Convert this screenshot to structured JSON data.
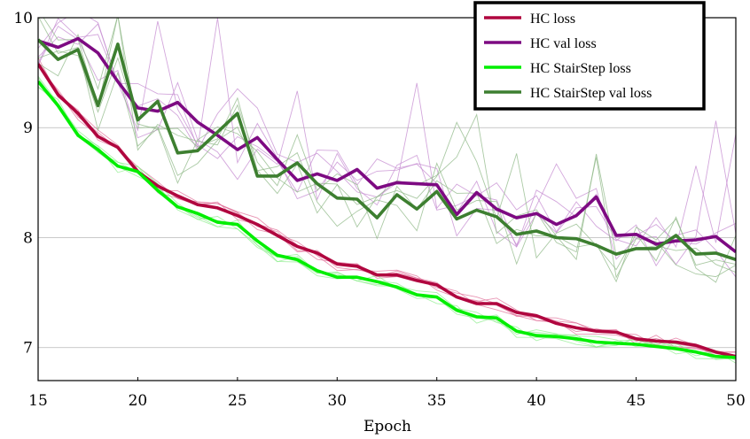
{
  "chart_data": {
    "type": "line",
    "title": "",
    "xlabel": "Epoch",
    "ylabel": "",
    "xlim": [
      15,
      50
    ],
    "ylim": [
      6.7,
      10
    ],
    "xticks": [
      15,
      20,
      25,
      30,
      35,
      40,
      45,
      50
    ],
    "yticks": [
      7,
      8,
      9,
      10
    ],
    "grid": "horizontal",
    "legend_position": "top-right",
    "x": [
      15,
      16,
      17,
      18,
      19,
      20,
      21,
      22,
      23,
      24,
      25,
      26,
      27,
      28,
      29,
      30,
      31,
      32,
      33,
      34,
      35,
      36,
      37,
      38,
      39,
      40,
      41,
      42,
      43,
      44,
      45,
      46,
      47,
      48,
      49,
      50
    ],
    "series": [
      {
        "name": "HC loss",
        "color": "#b0063f",
        "values": [
          9.58,
          9.3,
          9.13,
          8.92,
          8.82,
          8.6,
          8.47,
          8.38,
          8.3,
          8.27,
          8.2,
          8.12,
          8.02,
          7.92,
          7.86,
          7.76,
          7.74,
          7.66,
          7.66,
          7.61,
          7.57,
          7.46,
          7.4,
          7.4,
          7.32,
          7.29,
          7.22,
          7.18,
          7.15,
          7.14,
          7.08,
          7.06,
          7.05,
          7.02,
          6.96,
          6.92
        ]
      },
      {
        "name": "HC val loss",
        "color": "#7d0a82",
        "values": [
          9.79,
          9.73,
          9.81,
          9.68,
          9.42,
          9.18,
          9.15,
          9.23,
          9.05,
          8.93,
          8.8,
          8.91,
          8.71,
          8.52,
          8.58,
          8.52,
          8.62,
          8.45,
          8.5,
          8.49,
          8.48,
          8.21,
          8.41,
          8.26,
          8.18,
          8.22,
          8.12,
          8.2,
          8.37,
          8.02,
          8.03,
          7.94,
          7.97,
          7.98,
          8.01,
          7.87
        ]
      },
      {
        "name": "HC StairStep loss",
        "color": "#00ee00",
        "values": [
          9.42,
          9.2,
          8.93,
          8.8,
          8.65,
          8.6,
          8.43,
          8.28,
          8.22,
          8.14,
          8.12,
          7.97,
          7.84,
          7.8,
          7.7,
          7.64,
          7.64,
          7.6,
          7.55,
          7.48,
          7.46,
          7.34,
          7.28,
          7.27,
          7.15,
          7.11,
          7.1,
          7.08,
          7.05,
          7.04,
          7.03,
          7.01,
          6.99,
          6.96,
          6.92,
          6.91
        ]
      },
      {
        "name": "HC StairStep val loss",
        "color": "#3d7f30",
        "values": [
          9.8,
          9.62,
          9.71,
          9.2,
          9.76,
          9.07,
          9.24,
          8.77,
          8.79,
          8.96,
          9.13,
          8.56,
          8.56,
          8.68,
          8.49,
          8.36,
          8.35,
          8.18,
          8.39,
          8.26,
          8.42,
          8.17,
          8.25,
          8.19,
          8.03,
          8.06,
          8.0,
          7.99,
          7.93,
          7.85,
          7.9,
          7.9,
          8.02,
          7.85,
          7.86,
          7.8
        ]
      }
    ]
  }
}
